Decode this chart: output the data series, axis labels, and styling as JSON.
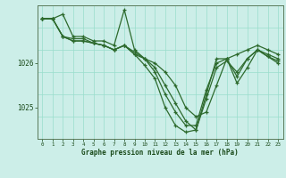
{
  "title": "Graphe pression niveau de la mer (hPa)",
  "bg_color": "#cceee8",
  "grid_color": "#99ddcc",
  "line_color": "#2d6a2d",
  "xlim": [
    -0.5,
    23.5
  ],
  "ylim": [
    1024.3,
    1027.3
  ],
  "yticks": [
    1025,
    1026
  ],
  "xticks": [
    0,
    1,
    2,
    3,
    4,
    5,
    6,
    7,
    8,
    9,
    10,
    11,
    12,
    13,
    14,
    15,
    16,
    17,
    18,
    19,
    20,
    21,
    22,
    23
  ],
  "series": [
    {
      "x": [
        0,
        1,
        2,
        3,
        4,
        5,
        6,
        7,
        8,
        9,
        10,
        11,
        12,
        13,
        14,
        15,
        16,
        17,
        18,
        19,
        20,
        21,
        22,
        23
      ],
      "y": [
        1027.0,
        1027.0,
        1027.1,
        1026.6,
        1026.6,
        1026.5,
        1026.5,
        1026.4,
        1027.2,
        1026.3,
        1026.1,
        1026.0,
        1025.8,
        1025.5,
        1025.0,
        1024.8,
        1024.9,
        1025.5,
        1026.1,
        1026.2,
        1026.3,
        1026.4,
        1026.3,
        1026.2
      ]
    },
    {
      "x": [
        0,
        1,
        2,
        3,
        4,
        5,
        6,
        7,
        8,
        9,
        10,
        11,
        12,
        13,
        14,
        15,
        16,
        17,
        18,
        19,
        20,
        21,
        22,
        23
      ],
      "y": [
        1027.0,
        1027.0,
        1026.6,
        1026.55,
        1026.55,
        1026.45,
        1026.4,
        1026.3,
        1026.4,
        1026.2,
        1026.1,
        1025.8,
        1025.3,
        1024.9,
        1024.6,
        1024.6,
        1025.4,
        1026.0,
        1026.1,
        1025.7,
        1026.1,
        1026.3,
        1026.2,
        1026.1
      ]
    },
    {
      "x": [
        0,
        1,
        2,
        3,
        4,
        5,
        6,
        7,
        8,
        9,
        10,
        11,
        12,
        13,
        14,
        15,
        16,
        17,
        18,
        19,
        20,
        21,
        22,
        23
      ],
      "y": [
        1027.0,
        1027.0,
        1026.6,
        1026.5,
        1026.5,
        1026.45,
        1026.4,
        1026.3,
        1026.4,
        1026.25,
        1026.1,
        1025.9,
        1025.5,
        1025.1,
        1024.7,
        1024.5,
        1025.2,
        1025.9,
        1026.05,
        1025.8,
        1026.1,
        1026.3,
        1026.15,
        1026.05
      ]
    },
    {
      "x": [
        0,
        1,
        2,
        3,
        4,
        5,
        6,
        7,
        8,
        9,
        10,
        11,
        12,
        13,
        14,
        15,
        16,
        17,
        18,
        19,
        20,
        21,
        22,
        23
      ],
      "y": [
        1027.0,
        1027.0,
        1026.6,
        1026.5,
        1026.5,
        1026.45,
        1026.4,
        1026.3,
        1026.4,
        1026.2,
        1025.95,
        1025.65,
        1025.0,
        1024.6,
        1024.45,
        1024.5,
        1025.3,
        1026.1,
        1026.1,
        1025.55,
        1025.9,
        1026.3,
        1026.15,
        1026.0
      ]
    }
  ]
}
